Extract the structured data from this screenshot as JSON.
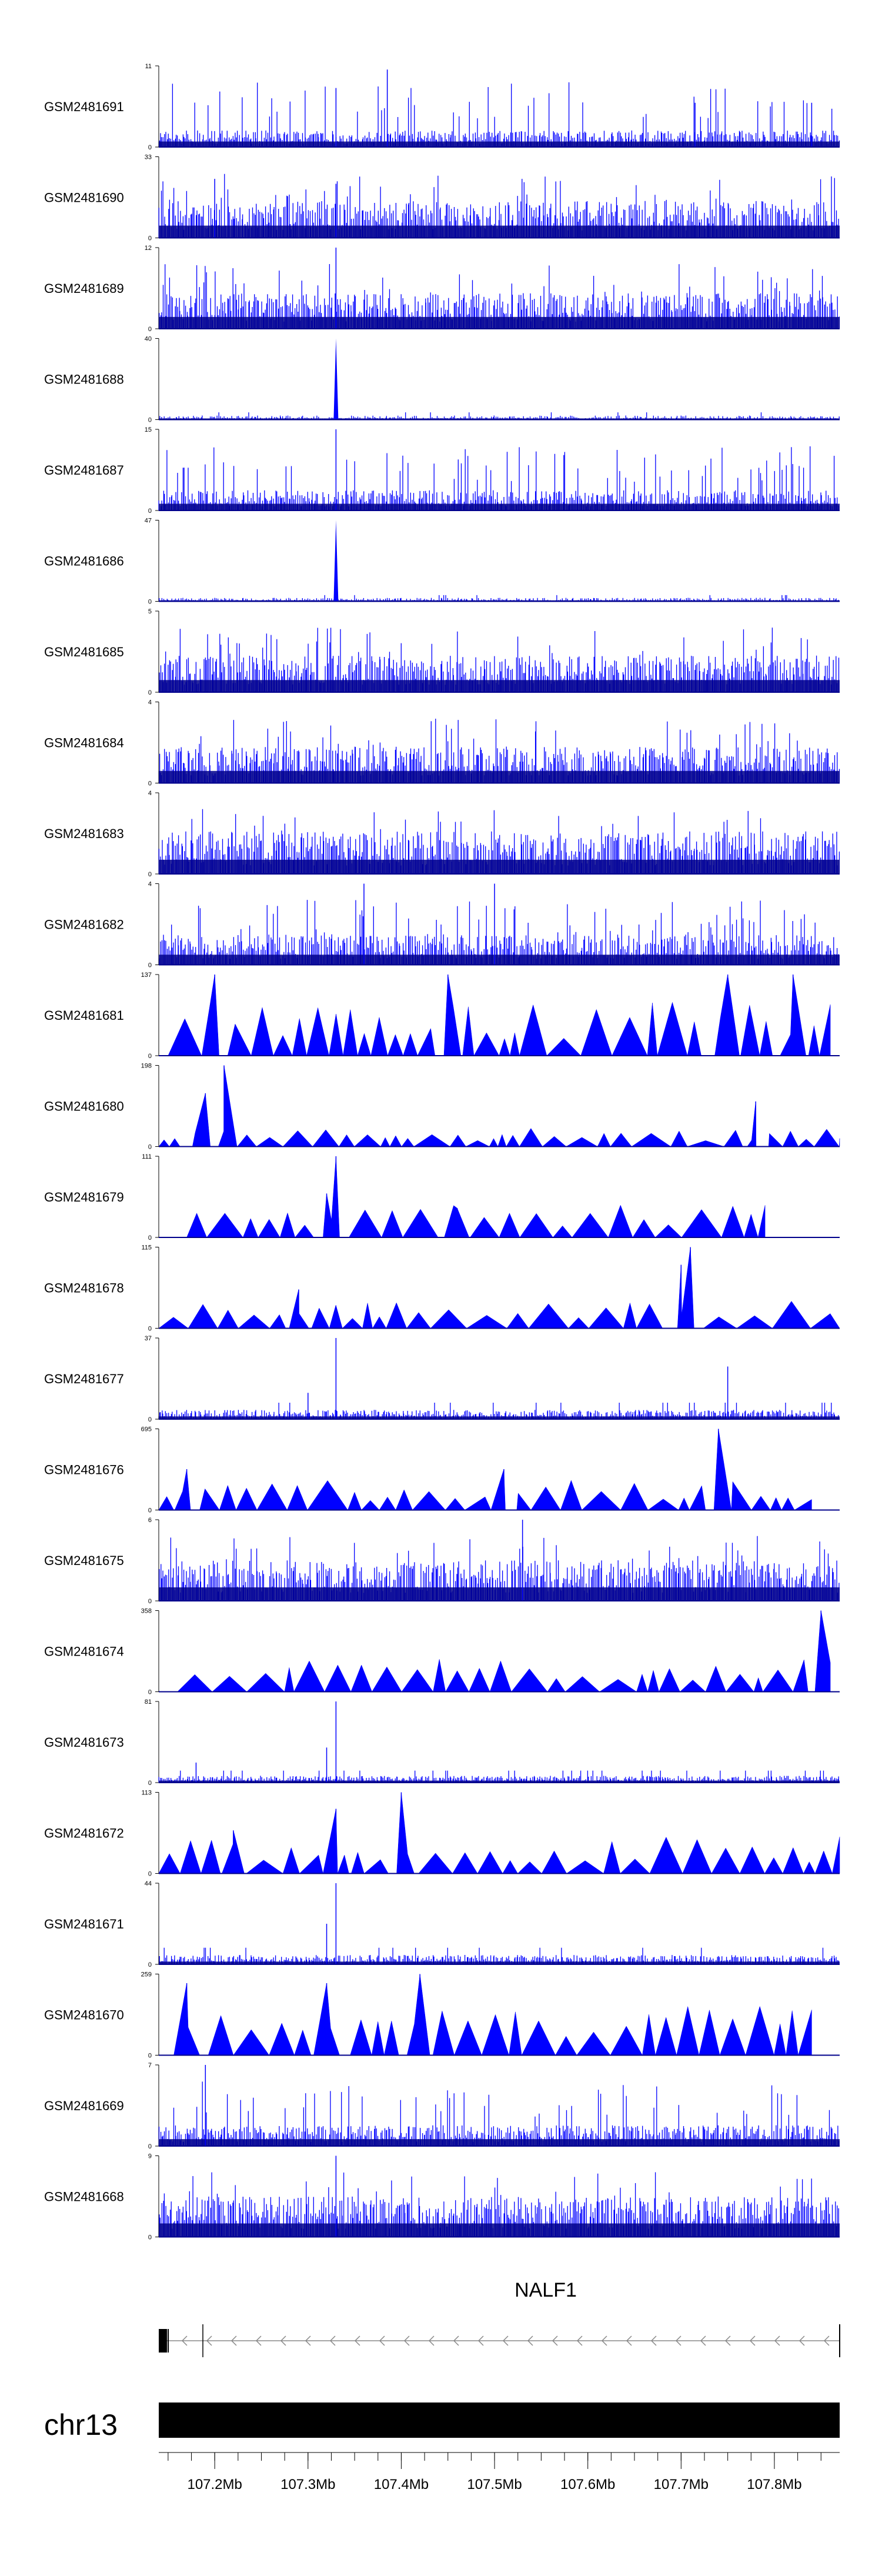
{
  "chart_data": {
    "type": "area",
    "fill_color": "#0000ff",
    "track_line_color": "#00008b",
    "region": {
      "chromosome": "chr13",
      "start_mb": 107.14,
      "end_mb": 107.87
    },
    "tracks": [
      {
        "name": "GSM2481691",
        "ymin": 0,
        "ymax": 11,
        "style": "dense",
        "peaks": [
          [
            107.33,
            8
          ],
          [
            107.385,
            10.5
          ],
          [
            107.715,
            6
          ],
          [
            107.84,
            6
          ]
        ],
        "baseline": 1.5
      },
      {
        "name": "GSM2481690",
        "ymin": 0,
        "ymax": 33,
        "style": "sparse-dense",
        "peaks": [
          [
            107.2,
            24
          ],
          [
            107.33,
            22
          ]
        ],
        "baseline": 10
      },
      {
        "name": "GSM2481689",
        "ymin": 0,
        "ymax": 12,
        "style": "dense",
        "peaks": [
          [
            107.33,
            12
          ]
        ],
        "baseline": 3.5
      },
      {
        "name": "GSM2481688",
        "ymin": 0,
        "ymax": 40,
        "style": "sharp",
        "peaks": [
          [
            107.33,
            40
          ]
        ],
        "baseline": 1.2
      },
      {
        "name": "GSM2481687",
        "ymin": 0,
        "ymax": 15,
        "style": "dense",
        "peaks": [
          [
            107.33,
            15
          ]
        ],
        "baseline": 2.5
      },
      {
        "name": "GSM2481686",
        "ymin": 0,
        "ymax": 47,
        "style": "sharp",
        "peaks": [
          [
            107.33,
            47
          ]
        ],
        "baseline": 1.2
      },
      {
        "name": "GSM2481685",
        "ymin": 0,
        "ymax": 5,
        "style": "dense",
        "peaks": [],
        "baseline": 1.5
      },
      {
        "name": "GSM2481684",
        "ymin": 0,
        "ymax": 4,
        "style": "dense",
        "peaks": [],
        "baseline": 1.2
      },
      {
        "name": "GSM2481683",
        "ymin": 0,
        "ymax": 4,
        "style": "dense",
        "peaks": [],
        "baseline": 1.4
      },
      {
        "name": "GSM2481682",
        "ymin": 0,
        "ymax": 4,
        "style": "dense",
        "peaks": [
          [
            107.36,
            4
          ],
          [
            107.5,
            4
          ]
        ],
        "baseline": 1.0
      },
      {
        "name": "GSM2481681",
        "ymin": 0,
        "ymax": 137,
        "style": "triangles",
        "span": [
          107.15,
          107.86
        ],
        "peaks": [
          [
            107.2,
            137
          ],
          [
            107.75,
            137
          ],
          [
            107.82,
            137
          ],
          [
            107.45,
            137
          ]
        ],
        "baseline": 70
      },
      {
        "name": "GSM2481680",
        "ymin": 0,
        "ymax": 198,
        "style": "triangles",
        "span": [
          107.14,
          107.87
        ],
        "peaks": [
          [
            107.21,
            198
          ],
          [
            107.19,
            130
          ],
          [
            107.78,
            110
          ]
        ],
        "baseline": 35
      },
      {
        "name": "GSM2481679",
        "ymin": 0,
        "ymax": 111,
        "style": "triangles",
        "span": [
          107.17,
          107.79
        ],
        "peaks": [
          [
            107.33,
            111
          ],
          [
            107.32,
            60
          ],
          [
            107.46,
            40
          ]
        ],
        "baseline": 35
      },
      {
        "name": "GSM2481678",
        "ymin": 0,
        "ymax": 115,
        "style": "triangles",
        "span": [
          107.14,
          107.87
        ],
        "peaks": [
          [
            107.71,
            115
          ],
          [
            107.7,
            90
          ],
          [
            107.29,
            55
          ]
        ],
        "baseline": 30
      },
      {
        "name": "GSM2481677",
        "ymin": 0,
        "ymax": 37,
        "style": "sparse",
        "peaks": [
          [
            107.33,
            37
          ],
          [
            107.75,
            24
          ],
          [
            107.3,
            12
          ]
        ],
        "baseline": 2.5
      },
      {
        "name": "GSM2481676",
        "ymin": 0,
        "ymax": 695,
        "style": "triangles",
        "span": [
          107.14,
          107.84
        ],
        "peaks": [
          [
            107.74,
            695
          ],
          [
            107.51,
            350
          ],
          [
            107.17,
            350
          ]
        ],
        "baseline": 200
      },
      {
        "name": "GSM2481675",
        "ymin": 0,
        "ymax": 6,
        "style": "dense",
        "peaks": [
          [
            107.53,
            6
          ]
        ],
        "baseline": 2.0
      },
      {
        "name": "GSM2481674",
        "ymin": 0,
        "ymax": 358,
        "style": "triangles",
        "span": [
          107.16,
          107.86
        ],
        "peaks": [
          [
            107.85,
            358
          ]
        ],
        "baseline": 120
      },
      {
        "name": "GSM2481673",
        "ymin": 0,
        "ymax": 81,
        "style": "sparse",
        "peaks": [
          [
            107.33,
            81
          ],
          [
            107.32,
            35
          ],
          [
            107.18,
            20
          ]
        ],
        "baseline": 4
      },
      {
        "name": "GSM2481672",
        "ymin": 0,
        "ymax": 113,
        "style": "triangles",
        "span": [
          107.14,
          107.87
        ],
        "peaks": [
          [
            107.4,
            113
          ],
          [
            107.33,
            90
          ],
          [
            107.22,
            60
          ]
        ],
        "baseline": 40
      },
      {
        "name": "GSM2481671",
        "ymin": 0,
        "ymax": 44,
        "style": "sparse",
        "peaks": [
          [
            107.33,
            44
          ],
          [
            107.32,
            22
          ]
        ],
        "baseline": 3
      },
      {
        "name": "GSM2481670",
        "ymin": 0,
        "ymax": 259,
        "style": "triangles",
        "span": [
          107.15,
          107.84
        ],
        "peaks": [
          [
            107.42,
            259
          ],
          [
            107.17,
            230
          ],
          [
            107.32,
            230
          ]
        ],
        "baseline": 120
      },
      {
        "name": "GSM2481669",
        "ymin": 0,
        "ymax": 7,
        "style": "dense",
        "peaks": [
          [
            107.19,
            7
          ]
        ],
        "baseline": 1.2
      },
      {
        "name": "GSM2481668",
        "ymin": 0,
        "ymax": 9,
        "style": "dense",
        "peaks": [
          [
            107.33,
            9
          ]
        ],
        "baseline": 3.0
      }
    ],
    "gene": {
      "name": "NALF1",
      "strand": "-",
      "start_mb": 107.14,
      "end_mb": 107.87,
      "exons_mb": [
        [
          107.14,
          107.15
        ],
        [
          107.865,
          107.87
        ]
      ]
    },
    "ideogram": {
      "label": "chr13"
    },
    "x_axis": {
      "ticks_mb": [
        107.2,
        107.3,
        107.4,
        107.5,
        107.6,
        107.7,
        107.8
      ],
      "tick_labels": [
        "107.2Mb",
        "107.3Mb",
        "107.4Mb",
        "107.5Mb",
        "107.6Mb",
        "107.7Mb",
        "107.8Mb"
      ]
    }
  }
}
